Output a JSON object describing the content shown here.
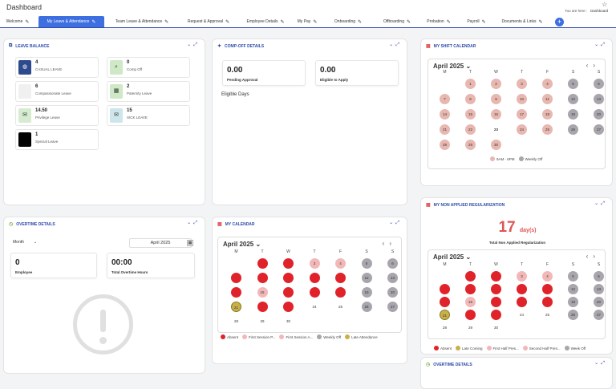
{
  "header": {
    "title": "Dashboard",
    "you_are_here": "You are here :",
    "crumb": "Dashboard"
  },
  "tabs": [
    {
      "label": "Welcome",
      "active": false
    },
    {
      "label": "My Leave & Attendance",
      "active": true
    },
    {
      "label": "Team Leave & Attendance",
      "active": false
    },
    {
      "label": "Request & Approval",
      "active": false
    },
    {
      "label": "Employee Details",
      "active": false
    },
    {
      "label": "My Pay",
      "active": false
    },
    {
      "label": "Onboarding",
      "active": false
    },
    {
      "label": "Offboarding",
      "active": false
    },
    {
      "label": "Probation",
      "active": false
    },
    {
      "label": "Payroll",
      "active": false
    },
    {
      "label": "Documents & Links",
      "active": false
    }
  ],
  "leave_balance": {
    "title": "LEAVE BALANCE",
    "items": [
      {
        "count": "4",
        "label": "CASUAL LEAVE",
        "icon": "globe-icon",
        "color": "#2c4a8c"
      },
      {
        "count": "0",
        "label": "Comp Off",
        "icon": "search-icon",
        "color": "#cfe8c5"
      },
      {
        "count": "6",
        "label": "Compassionate Leave",
        "icon": "",
        "color": "#f0f0f0"
      },
      {
        "count": "2",
        "label": "Paternity Leave",
        "icon": "grid-icon",
        "color": "#cfe8c5"
      },
      {
        "count": "14.50",
        "label": "Privilege Leave",
        "icon": "mail-icon",
        "color": "#d6ecd0"
      },
      {
        "count": "15",
        "label": "SICK LEAVE",
        "icon": "mail-icon",
        "color": "#cde6ec"
      },
      {
        "count": "1",
        "label": "Special Leave",
        "icon": "",
        "color": "#000000"
      }
    ]
  },
  "comp_off": {
    "title": "COMP-OFF DETAILS",
    "pending_value": "0.00",
    "pending_label": "Pending Approval",
    "eligible_value": "0.00",
    "eligible_label": "Eligible to Apply",
    "eligible_days": "Eligible Days"
  },
  "shift_calendar": {
    "title": "MY SHIFT CALENDAR",
    "month": "April 2025",
    "days_of_week": [
      "M",
      "T",
      "W",
      "T",
      "F",
      "S",
      "S"
    ],
    "days": [
      {
        "n": "",
        "s": "none"
      },
      {
        "n": "1",
        "s": "shift"
      },
      {
        "n": "2",
        "s": "shift"
      },
      {
        "n": "3",
        "s": "shift"
      },
      {
        "n": "4",
        "s": "shift"
      },
      {
        "n": "5",
        "s": "off"
      },
      {
        "n": "6",
        "s": "off"
      },
      {
        "n": "7",
        "s": "shift"
      },
      {
        "n": "8",
        "s": "shift"
      },
      {
        "n": "9",
        "s": "shift"
      },
      {
        "n": "10",
        "s": "shift"
      },
      {
        "n": "11",
        "s": "shift"
      },
      {
        "n": "12",
        "s": "off"
      },
      {
        "n": "13",
        "s": "off"
      },
      {
        "n": "14",
        "s": "shift"
      },
      {
        "n": "15",
        "s": "shift"
      },
      {
        "n": "16",
        "s": "shift"
      },
      {
        "n": "17",
        "s": "shift"
      },
      {
        "n": "18",
        "s": "shift"
      },
      {
        "n": "19",
        "s": "off"
      },
      {
        "n": "20",
        "s": "off"
      },
      {
        "n": "21",
        "s": "shift"
      },
      {
        "n": "22",
        "s": "shift"
      },
      {
        "n": "23",
        "s": "today"
      },
      {
        "n": "24",
        "s": "shift"
      },
      {
        "n": "25",
        "s": "shift"
      },
      {
        "n": "26",
        "s": "off"
      },
      {
        "n": "27",
        "s": "off"
      },
      {
        "n": "28",
        "s": "shift"
      },
      {
        "n": "29",
        "s": "shift"
      },
      {
        "n": "30",
        "s": "shift"
      }
    ],
    "legend": [
      {
        "label": "9AM - 6PM",
        "color": "#e8b7b0"
      },
      {
        "label": "Weekly Off",
        "color": "#a9a5ad"
      }
    ]
  },
  "overtime": {
    "title": "OVERTIME DETAILS",
    "period": "Month",
    "date_value": "April 2025",
    "emp_value": "0",
    "emp_label": "Employee",
    "hours_value": "00:00",
    "hours_label": "Total Overtime Hours"
  },
  "my_calendar": {
    "title": "MY CALENDAR",
    "month": "April 2025",
    "days_of_week": [
      "M",
      "T",
      "W",
      "T",
      "F",
      "S",
      "S"
    ],
    "days": [
      {
        "n": "",
        "s": "none"
      },
      {
        "n": "1",
        "s": "absent"
      },
      {
        "n": "2",
        "s": "absent"
      },
      {
        "n": "3",
        "s": "first"
      },
      {
        "n": "4",
        "s": "first"
      },
      {
        "n": "5",
        "s": "off"
      },
      {
        "n": "6",
        "s": "off"
      },
      {
        "n": "7",
        "s": "absent"
      },
      {
        "n": "8",
        "s": "absent"
      },
      {
        "n": "9",
        "s": "absent"
      },
      {
        "n": "10",
        "s": "absent"
      },
      {
        "n": "11",
        "s": "absent"
      },
      {
        "n": "12",
        "s": "off"
      },
      {
        "n": "13",
        "s": "off"
      },
      {
        "n": "14",
        "s": "absent"
      },
      {
        "n": "15",
        "s": "firstp"
      },
      {
        "n": "16",
        "s": "absent"
      },
      {
        "n": "17",
        "s": "absent"
      },
      {
        "n": "18",
        "s": "absent"
      },
      {
        "n": "19",
        "s": "off"
      },
      {
        "n": "20",
        "s": "off"
      },
      {
        "n": "21",
        "s": "late"
      },
      {
        "n": "22",
        "s": "absent"
      },
      {
        "n": "23",
        "s": "absent"
      },
      {
        "n": "24",
        "s": "none"
      },
      {
        "n": "25",
        "s": "none"
      },
      {
        "n": "26",
        "s": "off"
      },
      {
        "n": "27",
        "s": "off"
      },
      {
        "n": "28",
        "s": "none"
      },
      {
        "n": "29",
        "s": "none"
      },
      {
        "n": "30",
        "s": "none"
      }
    ],
    "legend": [
      {
        "label": "Absent",
        "color": "#e0232a"
      },
      {
        "label": "First Session P...",
        "color": "#f2b8b8"
      },
      {
        "label": "First Session A...",
        "color": "#f2b8b8"
      },
      {
        "label": "Weekly Off",
        "color": "#a9a5ad"
      },
      {
        "label": "Late Attendance",
        "color": "#c8b04a"
      }
    ]
  },
  "non_applied": {
    "title": "MY NON APPLIED REGULARIZATION",
    "count": "17",
    "unit": "day(s)",
    "subtitle": "Total Non Applied Regularization",
    "month": "April 2025",
    "days_of_week": [
      "M",
      "T",
      "W",
      "T",
      "F",
      "S",
      "S"
    ],
    "days": [
      {
        "n": "",
        "s": "none"
      },
      {
        "n": "1",
        "s": "absent"
      },
      {
        "n": "2",
        "s": "absent"
      },
      {
        "n": "3",
        "s": "first"
      },
      {
        "n": "4",
        "s": "first"
      },
      {
        "n": "5",
        "s": "off"
      },
      {
        "n": "6",
        "s": "off"
      },
      {
        "n": "7",
        "s": "absent"
      },
      {
        "n": "8",
        "s": "absent"
      },
      {
        "n": "9",
        "s": "absent"
      },
      {
        "n": "10",
        "s": "absent"
      },
      {
        "n": "11",
        "s": "absent"
      },
      {
        "n": "12",
        "s": "off"
      },
      {
        "n": "13",
        "s": "off"
      },
      {
        "n": "14",
        "s": "absent"
      },
      {
        "n": "15",
        "s": "firstp"
      },
      {
        "n": "16",
        "s": "absent"
      },
      {
        "n": "17",
        "s": "absent"
      },
      {
        "n": "18",
        "s": "absent"
      },
      {
        "n": "19",
        "s": "off"
      },
      {
        "n": "20",
        "s": "off"
      },
      {
        "n": "21",
        "s": "late"
      },
      {
        "n": "22",
        "s": "absent"
      },
      {
        "n": "23",
        "s": "absent"
      },
      {
        "n": "24",
        "s": "none"
      },
      {
        "n": "25",
        "s": "none"
      },
      {
        "n": "26",
        "s": "off"
      },
      {
        "n": "27",
        "s": "off"
      },
      {
        "n": "28",
        "s": "none"
      },
      {
        "n": "29",
        "s": "none"
      },
      {
        "n": "30",
        "s": "none"
      }
    ],
    "legend": [
      {
        "label": "Absent",
        "color": "#e0232a"
      },
      {
        "label": "Late Coming",
        "color": "#c8b04a"
      },
      {
        "label": "First Half Pres...",
        "color": "#f2b8b8"
      },
      {
        "label": "Second Half Pres...",
        "color": "#f2b8b8"
      },
      {
        "label": "Week Off",
        "color": "#a9a5ad"
      }
    ]
  },
  "overtime2": {
    "title": "OVERTIME DETAILS"
  },
  "colors": {
    "accent": "#3d6fe0",
    "heading": "#2d4ba8",
    "absent": "#e0232a",
    "shift": "#e8b7b0",
    "off": "#a9a5ad",
    "late": "#c8b04a"
  }
}
